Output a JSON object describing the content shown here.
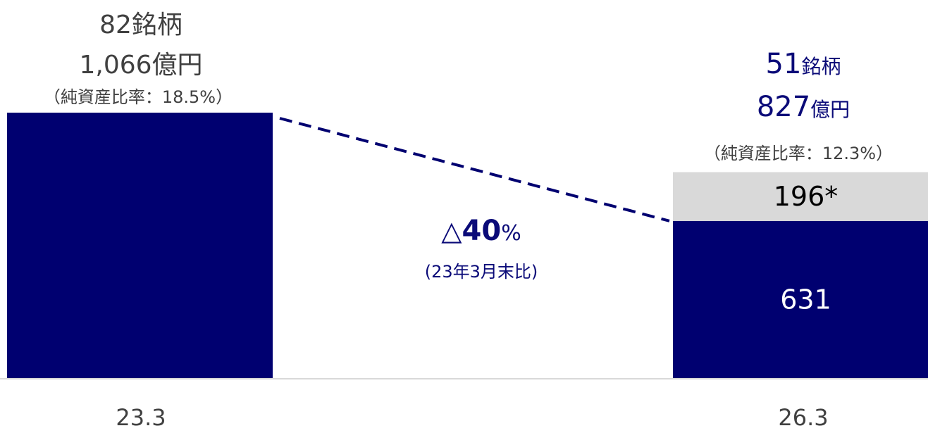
{
  "colors": {
    "navy": "#000070",
    "gray_segment": "#d9d9d9",
    "axis": "#d9d9d9",
    "text_gray": "#404040",
    "text_navy": "#0a0a78"
  },
  "chart_data": {
    "type": "bar",
    "stacked": true,
    "categories": [
      "23.3",
      "26.3"
    ],
    "ylim": [
      0,
      1066
    ],
    "bars": [
      {
        "category": "23.3",
        "segments": [
          {
            "value": 1066,
            "color": "#000070",
            "label": ""
          }
        ],
        "header": {
          "count": "82銘柄",
          "amount": "1,066億円",
          "ratio": "（純資産比率：18.5%）"
        }
      },
      {
        "category": "26.3",
        "segments": [
          {
            "value": 631,
            "color": "#000070",
            "label": "631"
          },
          {
            "value": 196,
            "color": "#d9d9d9",
            "label": "196*"
          }
        ],
        "header": {
          "count_num": "51",
          "count_unit": "銘柄",
          "amount_num": "827",
          "amount_unit": "億円",
          "ratio": "（純資産比率：12.3%）"
        }
      }
    ],
    "connector": {
      "style": "dashed",
      "from": "23.3",
      "to": "26.3"
    },
    "annotation": {
      "symbol": "△",
      "value": "40",
      "unit": "%",
      "note": "(23年3月末比)"
    }
  }
}
